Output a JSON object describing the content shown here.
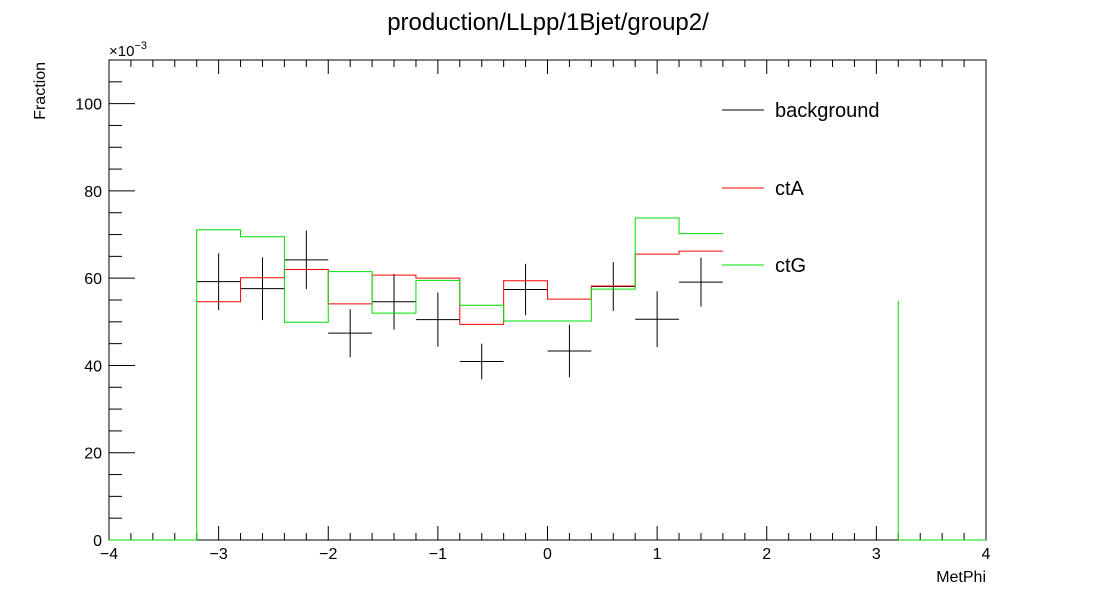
{
  "chart_data": {
    "type": "histogram",
    "title": "production/LLpp/1Bjet/group2/",
    "xlabel": "MetPhi",
    "ylabel": "Fraction",
    "y_multiplier": "×10",
    "y_multiplier_exp": "−3",
    "xlim": [
      -4,
      4
    ],
    "ylim": [
      0,
      110
    ],
    "x_ticks": [
      {
        "v": -4,
        "label": "−4"
      },
      {
        "v": -3,
        "label": "−3"
      },
      {
        "v": -2,
        "label": "−2"
      },
      {
        "v": -1,
        "label": "−1"
      },
      {
        "v": 0,
        "label": "0"
      },
      {
        "v": 1,
        "label": "1"
      },
      {
        "v": 2,
        "label": "2"
      },
      {
        "v": 3,
        "label": "3"
      },
      {
        "v": 4,
        "label": "4"
      }
    ],
    "y_ticks": [
      {
        "v": 0,
        "label": "0"
      },
      {
        "v": 20,
        "label": "20"
      },
      {
        "v": 40,
        "label": "40"
      },
      {
        "v": 60,
        "label": "60"
      },
      {
        "v": 80,
        "label": "80"
      },
      {
        "v": 100,
        "label": "100"
      }
    ],
    "legend_position": "top-right",
    "series": [
      {
        "name": "background",
        "kind": "points",
        "color": "#000000",
        "x": [
          -3.0,
          -2.6,
          -2.2,
          -1.8,
          -1.4,
          -1.0,
          -0.6,
          -0.2,
          0.2,
          0.6,
          1.0,
          1.4
        ],
        "y": [
          59.2,
          57.6,
          64.2,
          47.4,
          54.6,
          50.5,
          40.9,
          57.4,
          43.3,
          58.1,
          50.6,
          59.1
        ],
        "yerr": [
          6.5,
          7.2,
          6.7,
          5.5,
          6.4,
          6.2,
          4.1,
          5.9,
          6.0,
          5.6,
          6.4,
          5.6
        ],
        "xerr": 0.2
      },
      {
        "name": "ctA",
        "kind": "step",
        "color": "#ff0000",
        "edges": [
          -3.2,
          -2.8,
          -2.4,
          -2.0,
          -1.6,
          -1.2,
          -0.8,
          -0.4,
          0.0,
          0.4,
          0.8,
          1.2,
          1.6
        ],
        "values": [
          54.6,
          60.1,
          62.0,
          54.1,
          60.7,
          60.0,
          49.4,
          59.4,
          55.2,
          58.2,
          65.5,
          66.2
        ]
      },
      {
        "name": "ctG",
        "kind": "step",
        "color": "#00dd00",
        "edges": [
          -4.0,
          -3.2,
          -2.8,
          -2.4,
          -2.0,
          -1.6,
          -1.2,
          -0.8,
          -0.4,
          0.0,
          0.4,
          0.8,
          1.2,
          1.6
        ],
        "values": [
          0,
          71.1,
          69.5,
          49.9,
          61.5,
          52.0,
          59.5,
          53.8,
          50.2,
          50.2,
          57.5,
          73.8,
          70.2
        ],
        "extra_bars": [
          {
            "x0": 3.2,
            "x1": 3.2,
            "y": 54.8
          }
        ],
        "flat_tail": [
          3.2,
          4.0
        ]
      }
    ]
  }
}
